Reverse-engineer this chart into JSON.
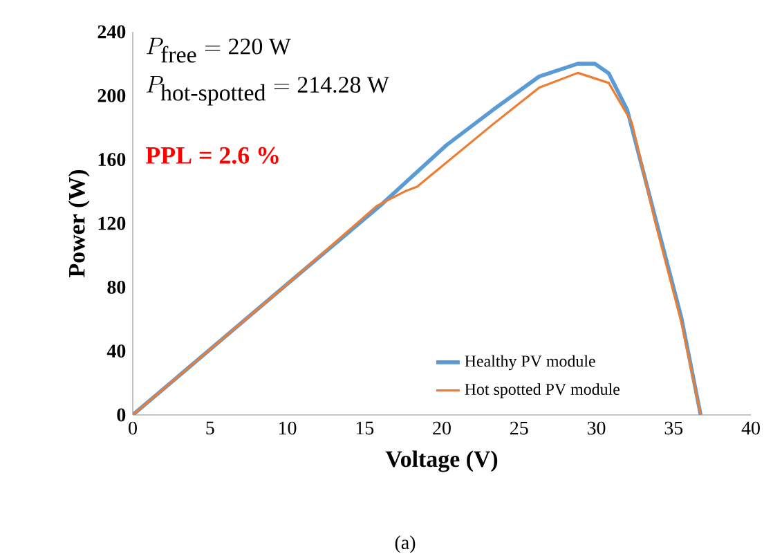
{
  "chart_data": {
    "type": "line",
    "xlabel": "Voltage (V)",
    "ylabel": "Power (W)",
    "xlim": [
      0,
      40
    ],
    "xticks": [
      0,
      5,
      10,
      15,
      20,
      25,
      30,
      35,
      40
    ],
    "ylim": [
      0,
      240
    ],
    "yticks": [
      0,
      40,
      80,
      120,
      160,
      200,
      240
    ],
    "grid": false,
    "legend": "bottom right",
    "marker": "none",
    "line_style": "solid",
    "series": [
      {
        "name": "Healthy PV module",
        "color": "#5b9bd5",
        "x": [
          0,
          10,
          16,
          20.3,
          23.3,
          26.3,
          28.8,
          29.9,
          30.8,
          32,
          33.8,
          35.5,
          36.75
        ],
        "values": [
          0,
          82,
          131,
          169,
          191,
          212,
          220,
          220,
          214,
          191,
          124,
          61,
          0
        ]
      },
      {
        "name": "Hot spotted PV module",
        "color": "#ed7d31",
        "x": [
          0,
          10,
          15.8,
          17.6,
          18.4,
          23.3,
          26.3,
          28.8,
          30.8,
          32.3,
          33.8,
          35.5,
          36.75
        ],
        "values": [
          0,
          82,
          131,
          140,
          143,
          182,
          205,
          214.28,
          208,
          183,
          121,
          58,
          0
        ]
      }
    ],
    "annotations": [
      "P_{\\textrm{free}} = \\textrm{220 W}",
      "P_{\\textrm{hot-spotted}} = \\textrm{214.28 W}",
      "PPL = 2.6 %",
      "(a)"
    ]
  }
}
